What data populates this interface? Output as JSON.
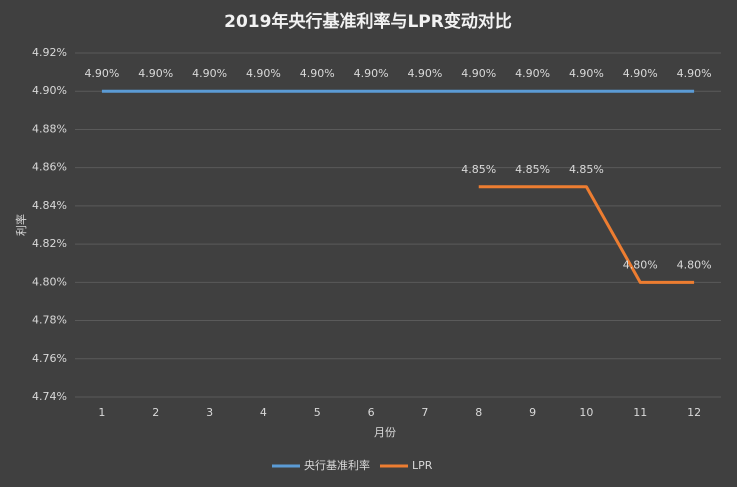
{
  "chart_data": {
    "type": "line",
    "title": "2019年央行基准利率与LPR变动对比",
    "x_label": "月份",
    "y_label": "利率",
    "categories": [
      "1",
      "2",
      "3",
      "4",
      "5",
      "6",
      "7",
      "8",
      "9",
      "10",
      "11",
      "12"
    ],
    "series": [
      {
        "name": "央行基准利率",
        "color": "#5b9bd5",
        "values": [
          4.9,
          4.9,
          4.9,
          4.9,
          4.9,
          4.9,
          4.9,
          4.9,
          4.9,
          4.9,
          4.9,
          4.9
        ],
        "value_labels": [
          "4.90%",
          "4.90%",
          "4.90%",
          "4.90%",
          "4.90%",
          "4.90%",
          "4.90%",
          "4.90%",
          "4.90%",
          "4.90%",
          "4.90%",
          "4.90%"
        ]
      },
      {
        "name": "LPR",
        "color": "#ed7d31",
        "values": [
          null,
          null,
          null,
          null,
          null,
          null,
          null,
          4.85,
          4.85,
          4.85,
          4.8,
          4.8
        ],
        "value_labels": [
          null,
          null,
          null,
          null,
          null,
          null,
          null,
          "4.85%",
          "4.85%",
          "4.85%",
          "4.80%",
          "4.80%"
        ]
      }
    ],
    "ylim": [
      4.74,
      4.92
    ],
    "yticks": [
      {
        "value": 4.74,
        "label": "4.74%"
      },
      {
        "value": 4.76,
        "label": "4.76%"
      },
      {
        "value": 4.78,
        "label": "4.78%"
      },
      {
        "value": 4.8,
        "label": "4.80%"
      },
      {
        "value": 4.82,
        "label": "4.82%"
      },
      {
        "value": 4.84,
        "label": "4.84%"
      },
      {
        "value": 4.86,
        "label": "4.86%"
      },
      {
        "value": 4.88,
        "label": "4.88%"
      },
      {
        "value": 4.9,
        "label": "4.90%"
      },
      {
        "value": 4.92,
        "label": "4.92%"
      }
    ],
    "grid": true,
    "legend": "bottom"
  }
}
